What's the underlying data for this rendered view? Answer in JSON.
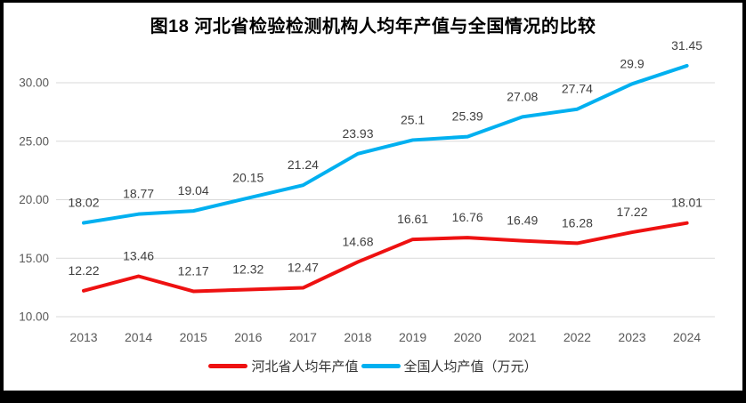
{
  "chart_data": {
    "type": "line",
    "title": "图18 河北省检验检测机构人均年产值与全国情况的比较",
    "categories": [
      "2013",
      "2014",
      "2015",
      "2016",
      "2017",
      "2018",
      "2019",
      "2020",
      "2021",
      "2022",
      "2023",
      "2024"
    ],
    "series": [
      {
        "name": "河北省人均年产值",
        "color": "#EE1111",
        "values": [
          12.22,
          13.46,
          12.17,
          12.32,
          12.47,
          14.68,
          16.61,
          16.76,
          16.49,
          16.28,
          17.22,
          18.01
        ],
        "labels": [
          "12.22",
          "13.46",
          "12.17",
          "12.32",
          "12.47",
          "14.68",
          "16.61",
          "16.76",
          "16.49",
          "16.28",
          "17.22",
          "18.01"
        ]
      },
      {
        "name": "全国人均产值（万元）",
        "color": "#00B0F0",
        "values": [
          18.02,
          18.77,
          19.04,
          20.15,
          21.24,
          23.93,
          25.1,
          25.39,
          27.08,
          27.74,
          29.9,
          31.45
        ],
        "labels": [
          "18.02",
          "18.77",
          "19.04",
          "20.15",
          "21.24",
          "23.93",
          "25.1",
          "25.39",
          "27.08",
          "27.74",
          "29.9",
          "31.45"
        ]
      }
    ],
    "y_axis": {
      "min": 10,
      "max": 32.5,
      "ticks": [
        {
          "v": 10,
          "label": "10.00"
        },
        {
          "v": 15,
          "label": "15.00"
        },
        {
          "v": 20,
          "label": "20.00"
        },
        {
          "v": 25,
          "label": "25.00"
        },
        {
          "v": 30,
          "label": "30.00"
        }
      ]
    },
    "xlabel": "",
    "ylabel": "",
    "grid": true,
    "data_labels": true,
    "legend_position": "bottom",
    "style": {
      "line_width": 4,
      "gridline_color": "#D9D9D9",
      "axis_text_color": "#595959",
      "data_label_color": "#404040",
      "title_color": "#000000",
      "background": "#FFFFFF",
      "frame_color": "#000000"
    }
  }
}
